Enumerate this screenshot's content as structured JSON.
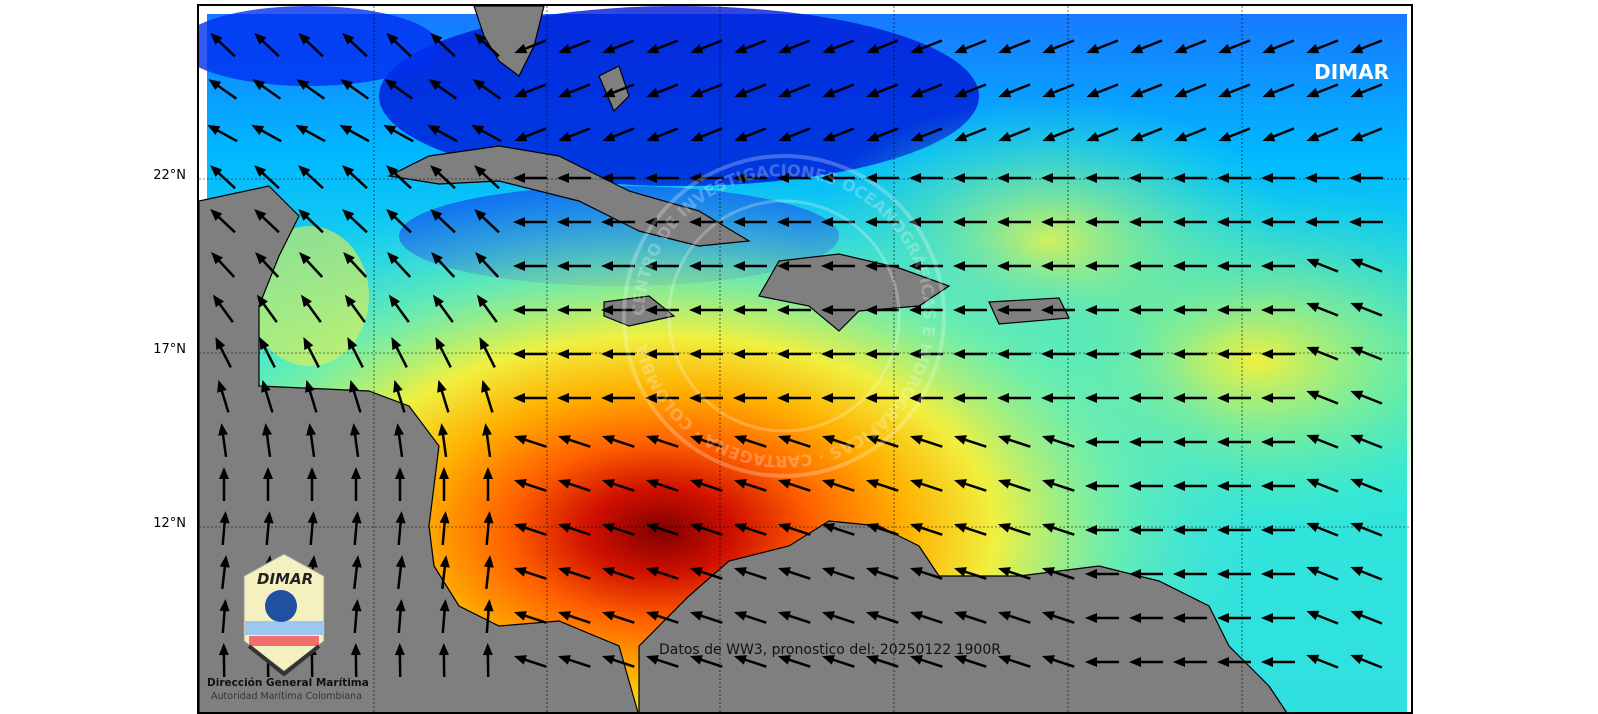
{
  "map": {
    "brand_label": "DIMAR",
    "credit": "Datos de WW3, pronostico del: 20250122 1900R",
    "latitude_labels": [
      "22°N",
      "17°N",
      "12°N"
    ],
    "logo": {
      "wordmark": "DIMAR",
      "name": "Dirección General Marítima",
      "subtitle": "Autoridad Marítima Colombiana"
    },
    "watermark": "CENTRO DE INVESTIGACIONES OCEANOGRÁFICAS E HIDROGRÁFICAS · CARTAGENA · COLOMBIA",
    "colorscale": [
      "#0000c8",
      "#0050ff",
      "#00c8ff",
      "#40f0c0",
      "#f0f040",
      "#ffa000",
      "#ff4000",
      "#800000"
    ],
    "land_color": "#7f7f7f",
    "dominant_flow": "east-to-west / northeast trade-wind swell"
  }
}
